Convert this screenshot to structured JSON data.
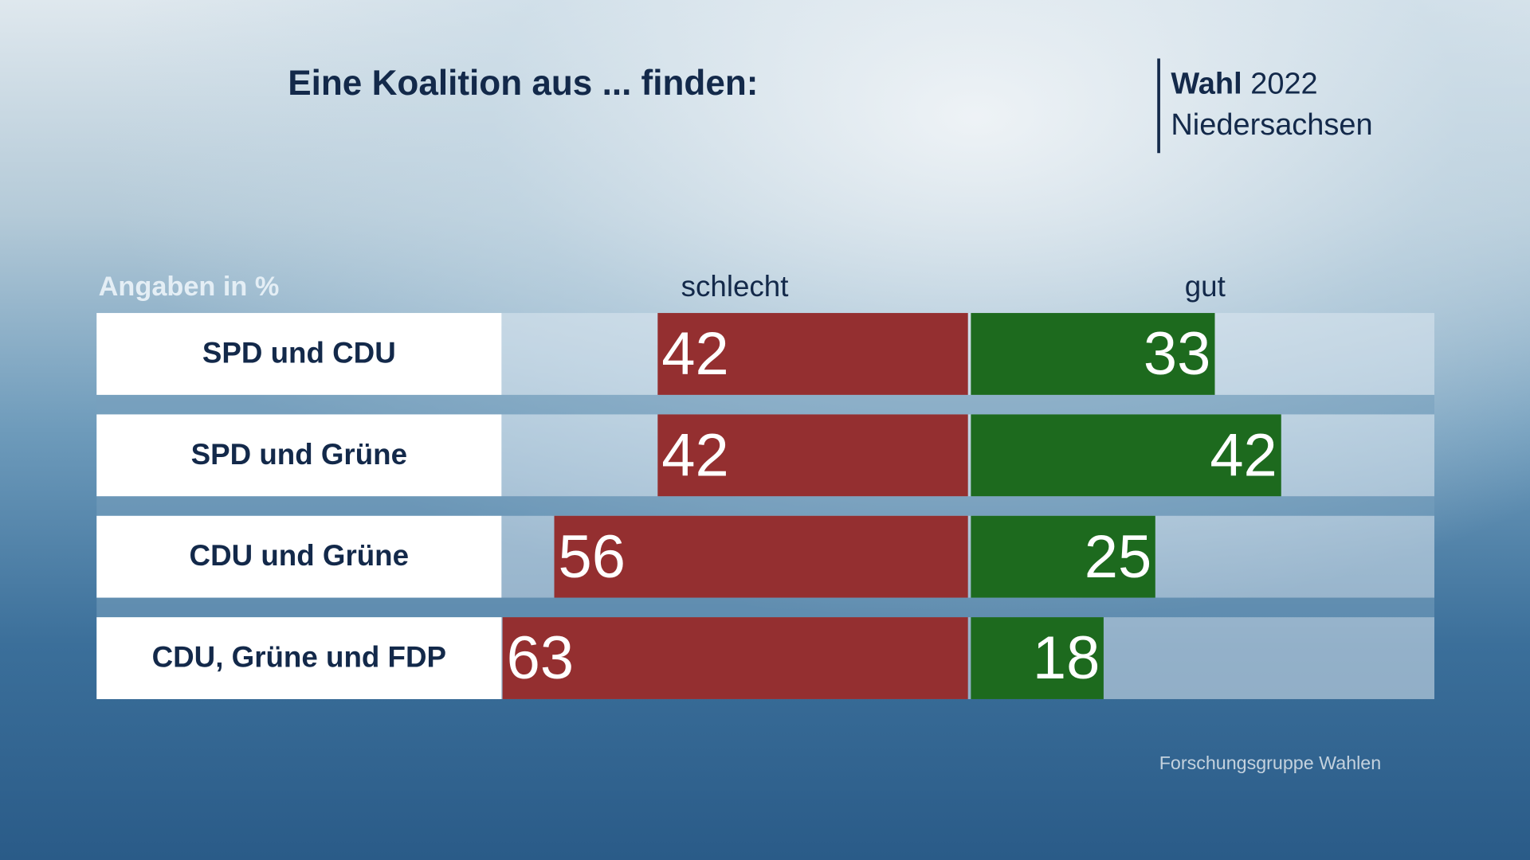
{
  "title": "Eine Koalition aus ... finden:",
  "badge": {
    "wahl": "Wahl",
    "year": "2022",
    "region": "Niedersachsen"
  },
  "unit_label": "Angaben in %",
  "source": "Forschungsgruppe Wahlen",
  "chart_data": {
    "type": "bar",
    "orientation": "horizontal-diverging",
    "title": "Eine Koalition aus ... finden:",
    "categories": [
      "SPD und CDU",
      "SPD und Grüne",
      "CDU und Grüne",
      "CDU, Grüne und FDP"
    ],
    "series": [
      {
        "name": "schlecht",
        "values": [
          42,
          42,
          56,
          63
        ],
        "color": "#942f30"
      },
      {
        "name": "gut",
        "values": [
          33,
          42,
          25,
          18
        ],
        "color": "#1d6a1e"
      }
    ],
    "xlim": [
      0,
      63
    ],
    "grid": false
  }
}
